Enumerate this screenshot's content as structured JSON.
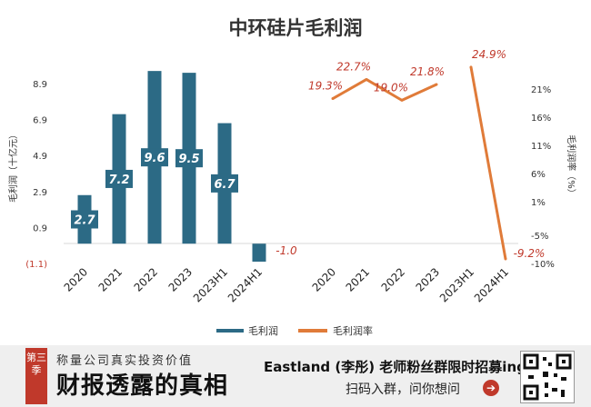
{
  "chart_data": {
    "type": "bar+line",
    "title": "中环硅片毛利润",
    "ylabel_left": "毛利润（十亿元）",
    "ylabel_right": "毛利润率（%）",
    "left_axis": {
      "ylim": [
        -1.1,
        8.9
      ],
      "ticks": [
        8.9,
        6.9,
        4.9,
        2.9,
        0.9,
        -1.1
      ],
      "tick_labels": [
        "8.9",
        "6.9",
        "4.9",
        "2.9",
        "0.9",
        "(1.1)"
      ]
    },
    "right_axis": {
      "ylim": [
        -10,
        21
      ],
      "ticks": [
        21,
        16,
        11,
        6,
        1,
        -5,
        -10
      ],
      "tick_labels": [
        "21%",
        "16%",
        "11%",
        "6%",
        "1%",
        "-5%",
        "-10%"
      ]
    },
    "bar_series": {
      "name": "毛利润",
      "categories": [
        "2020",
        "2021",
        "2022",
        "2023",
        "2023H1",
        "2024H1"
      ],
      "values": [
        2.7,
        7.2,
        9.6,
        9.5,
        6.7,
        -1.0
      ],
      "labels": [
        "2.7",
        "7.2",
        "9.6",
        "9.5",
        "6.7",
        "-1.0"
      ]
    },
    "line_series": {
      "name": "毛利润率",
      "categories": [
        "2020",
        "2021",
        "2022",
        "2023",
        "2023H1",
        "2024H1"
      ],
      "values": [
        19.3,
        22.7,
        19.0,
        21.8,
        24.9,
        -9.2
      ],
      "labels": [
        "19.3%",
        "22.7%",
        "19.0%",
        "21.8%",
        "24.9%",
        "-9.2%"
      ]
    },
    "legend": {
      "placement": "bottom",
      "entries": [
        "毛利润",
        "毛利润率"
      ]
    },
    "colors": {
      "bar": "#2c6a85",
      "line": "#e07b39",
      "label_red": "#c0392b"
    }
  },
  "banner": {
    "badge_text": "第三季",
    "subtitle": "称量公司真实投资价值",
    "main_title": "财报透露的真相",
    "right_line1": "Eastland (李彤) 老师粉丝群限时招募ing",
    "right_line2": "扫码入群，问你想问",
    "icons": [
      "arrow-right-icon",
      "qr-code-icon"
    ]
  }
}
